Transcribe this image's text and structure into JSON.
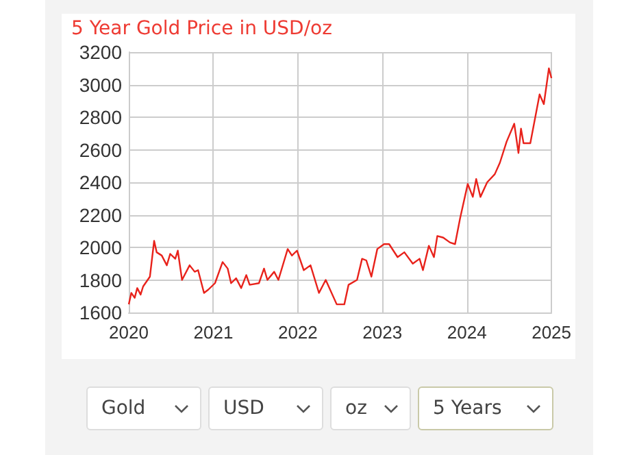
{
  "chart_data": {
    "type": "line",
    "title": "5 Year Gold Price in USD/oz",
    "x": [
      2020.0,
      2020.03,
      2020.07,
      2020.1,
      2020.14,
      2020.17,
      2020.25,
      2020.3,
      2020.33,
      2020.39,
      2020.45,
      2020.49,
      2020.55,
      2020.58,
      2020.63,
      2020.72,
      2020.78,
      2020.82,
      2020.89,
      2020.94,
      2021.02,
      2021.11,
      2021.17,
      2021.21,
      2021.27,
      2021.33,
      2021.39,
      2021.43,
      2021.54,
      2021.6,
      2021.64,
      2021.72,
      2021.77,
      2021.88,
      2021.93,
      2021.99,
      2022.07,
      2022.15,
      2022.25,
      2022.33,
      2022.46,
      2022.55,
      2022.6,
      2022.7,
      2022.76,
      2022.81,
      2022.87,
      2022.94,
      2023.02,
      2023.08,
      2023.18,
      2023.26,
      2023.36,
      2023.44,
      2023.48,
      2023.55,
      2023.61,
      2023.65,
      2023.72,
      2023.8,
      2023.86,
      2023.92,
      2024.01,
      2024.07,
      2024.11,
      2024.16,
      2024.24,
      2024.33,
      2024.39,
      2024.47,
      2024.56,
      2024.61,
      2024.64,
      2024.67,
      2024.75,
      2024.86,
      2024.91,
      2024.97,
      2025.0
    ],
    "series": [
      {
        "color": "#e8221b",
        "values": [
          1650,
          1720,
          1690,
          1750,
          1710,
          1760,
          1820,
          2040,
          1970,
          1950,
          1890,
          1960,
          1930,
          1980,
          1800,
          1890,
          1850,
          1860,
          1720,
          1740,
          1780,
          1910,
          1870,
          1780,
          1810,
          1750,
          1830,
          1770,
          1780,
          1870,
          1800,
          1850,
          1800,
          1990,
          1950,
          1980,
          1860,
          1890,
          1720,
          1800,
          1650,
          1650,
          1770,
          1800,
          1930,
          1920,
          1820,
          1990,
          2020,
          2020,
          1940,
          1970,
          1900,
          1930,
          1860,
          2010,
          1940,
          2070,
          2060,
          2030,
          2020,
          2180,
          2390,
          2310,
          2420,
          2310,
          2400,
          2450,
          2520,
          2650,
          2760,
          2580,
          2730,
          2640,
          2640,
          2940,
          2880,
          3100,
          3040
        ]
      }
    ],
    "xlim": [
      2020,
      2025
    ],
    "xticks": [
      2020,
      2021,
      2022,
      2023,
      2024,
      2025
    ],
    "ylim": [
      1600,
      3200
    ],
    "yticks": [
      1600,
      1800,
      2000,
      2200,
      2400,
      2600,
      2800,
      3000,
      3200
    ],
    "grid": true,
    "marker": "none",
    "line_style": "solid",
    "annotations": [
      "Gold",
      "USD",
      "oz",
      "5 Years"
    ]
  }
}
